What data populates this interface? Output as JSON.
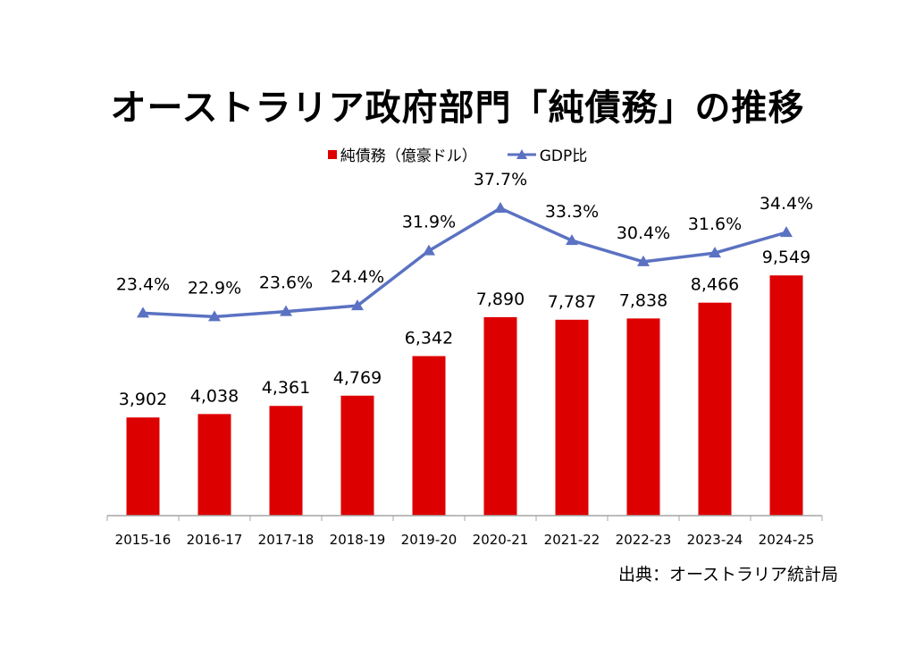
{
  "title": "オーストラリア政府部門「純債務」の推移",
  "source": "出典：オーストラリア統計局",
  "colors": {
    "bar": "#dd0000",
    "line": "#5b72c2"
  },
  "chart_data": {
    "type": "bar",
    "categories": [
      "2015-16",
      "2016-17",
      "2017-18",
      "2018-19",
      "2019-20",
      "2020-21",
      "2021-22",
      "2022-23",
      "2023-24",
      "2024-25"
    ],
    "series": [
      {
        "name": "純債務（億豪ドル）",
        "type": "bar",
        "values": [
          3902,
          4038,
          4361,
          4769,
          6342,
          7890,
          7787,
          7838,
          8466,
          9549
        ],
        "labels": [
          "3,902",
          "4,038",
          "4,361",
          "4,769",
          "6,342",
          "7,890",
          "7,787",
          "7,838",
          "8,466",
          "9,549"
        ]
      },
      {
        "name": "GDP比",
        "type": "line",
        "marker": "triangle",
        "values": [
          23.4,
          22.9,
          23.6,
          24.4,
          31.9,
          37.7,
          33.3,
          30.4,
          31.6,
          34.4
        ],
        "labels": [
          "23.4%",
          "22.9%",
          "23.6%",
          "24.4%",
          "31.9%",
          "37.7%",
          "33.3%",
          "30.4%",
          "31.6%",
          "34.4%"
        ]
      }
    ],
    "legend_position": "top-center",
    "grid": false,
    "ylim_bar": [
      0,
      10000
    ],
    "ylim_line": [
      0,
      40
    ]
  }
}
